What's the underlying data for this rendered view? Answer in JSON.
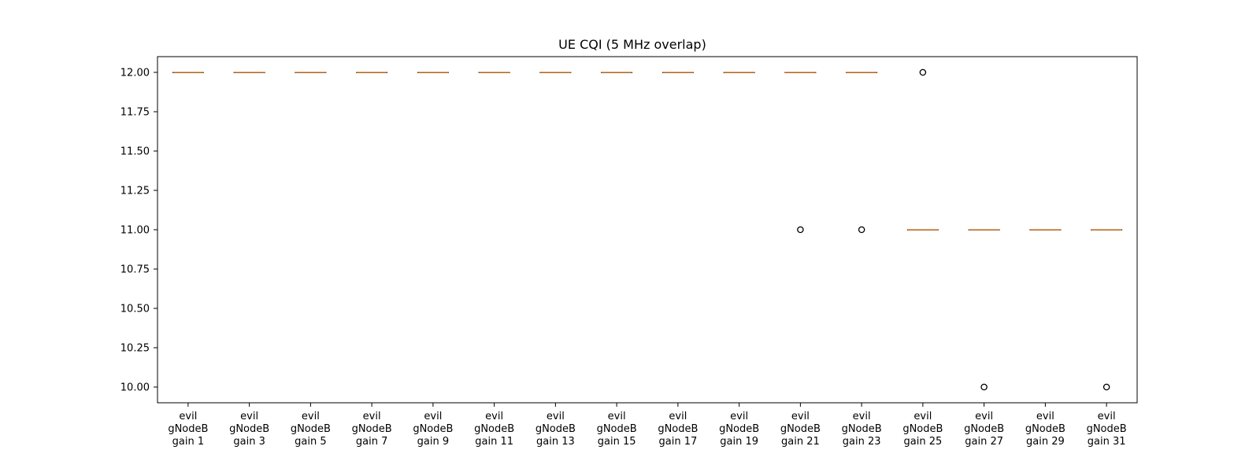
{
  "chart_data": {
    "type": "box",
    "title": "UE CQI (5 MHz overlap)",
    "xlabel": "",
    "ylabel": "",
    "ylim": [
      9.9,
      12.1
    ],
    "yticks": [
      "10.00",
      "10.25",
      "10.50",
      "10.75",
      "11.00",
      "11.25",
      "11.50",
      "11.75",
      "12.00"
    ],
    "ytick_values": [
      10.0,
      10.25,
      10.5,
      10.75,
      11.0,
      11.25,
      11.5,
      11.75,
      12.0
    ],
    "grid": false,
    "categories": [
      [
        "evil",
        "gNodeB",
        "gain 1"
      ],
      [
        "evil",
        "gNodeB",
        "gain 3"
      ],
      [
        "evil",
        "gNodeB",
        "gain 5"
      ],
      [
        "evil",
        "gNodeB",
        "gain 7"
      ],
      [
        "evil",
        "gNodeB",
        "gain 9"
      ],
      [
        "evil",
        "gNodeB",
        "gain 11"
      ],
      [
        "evil",
        "gNodeB",
        "gain 13"
      ],
      [
        "evil",
        "gNodeB",
        "gain 15"
      ],
      [
        "evil",
        "gNodeB",
        "gain 17"
      ],
      [
        "evil",
        "gNodeB",
        "gain 19"
      ],
      [
        "evil",
        "gNodeB",
        "gain 21"
      ],
      [
        "evil",
        "gNodeB",
        "gain 23"
      ],
      [
        "evil",
        "gNodeB",
        "gain 25"
      ],
      [
        "evil",
        "gNodeB",
        "gain 27"
      ],
      [
        "evil",
        "gNodeB",
        "gain 29"
      ],
      [
        "evil",
        "gNodeB",
        "gain 31"
      ]
    ],
    "boxes": [
      {
        "median": 12,
        "q1": 12,
        "q3": 12,
        "whisker_low": 12,
        "whisker_high": 12,
        "outliers": []
      },
      {
        "median": 12,
        "q1": 12,
        "q3": 12,
        "whisker_low": 12,
        "whisker_high": 12,
        "outliers": []
      },
      {
        "median": 12,
        "q1": 12,
        "q3": 12,
        "whisker_low": 12,
        "whisker_high": 12,
        "outliers": []
      },
      {
        "median": 12,
        "q1": 12,
        "q3": 12,
        "whisker_low": 12,
        "whisker_high": 12,
        "outliers": []
      },
      {
        "median": 12,
        "q1": 12,
        "q3": 12,
        "whisker_low": 12,
        "whisker_high": 12,
        "outliers": []
      },
      {
        "median": 12,
        "q1": 12,
        "q3": 12,
        "whisker_low": 12,
        "whisker_high": 12,
        "outliers": []
      },
      {
        "median": 12,
        "q1": 12,
        "q3": 12,
        "whisker_low": 12,
        "whisker_high": 12,
        "outliers": []
      },
      {
        "median": 12,
        "q1": 12,
        "q3": 12,
        "whisker_low": 12,
        "whisker_high": 12,
        "outliers": []
      },
      {
        "median": 12,
        "q1": 12,
        "q3": 12,
        "whisker_low": 12,
        "whisker_high": 12,
        "outliers": []
      },
      {
        "median": 12,
        "q1": 12,
        "q3": 12,
        "whisker_low": 12,
        "whisker_high": 12,
        "outliers": []
      },
      {
        "median": 12,
        "q1": 12,
        "q3": 12,
        "whisker_low": 12,
        "whisker_high": 12,
        "outliers": [
          11
        ]
      },
      {
        "median": 12,
        "q1": 12,
        "q3": 12,
        "whisker_low": 12,
        "whisker_high": 12,
        "outliers": [
          11
        ]
      },
      {
        "median": 11,
        "q1": 11,
        "q3": 11,
        "whisker_low": 11,
        "whisker_high": 11,
        "outliers": [
          12
        ]
      },
      {
        "median": 11,
        "q1": 11,
        "q3": 11,
        "whisker_low": 11,
        "whisker_high": 11,
        "outliers": [
          10
        ]
      },
      {
        "median": 11,
        "q1": 11,
        "q3": 11,
        "whisker_low": 11,
        "whisker_high": 11,
        "outliers": []
      },
      {
        "median": 11,
        "q1": 11,
        "q3": 11,
        "whisker_low": 11,
        "whisker_high": 11,
        "outliers": [
          10
        ]
      }
    ],
    "colors": {
      "median": "#e08a3c",
      "box": "#000000",
      "outlier": "#000000",
      "axes": "#000000"
    }
  }
}
